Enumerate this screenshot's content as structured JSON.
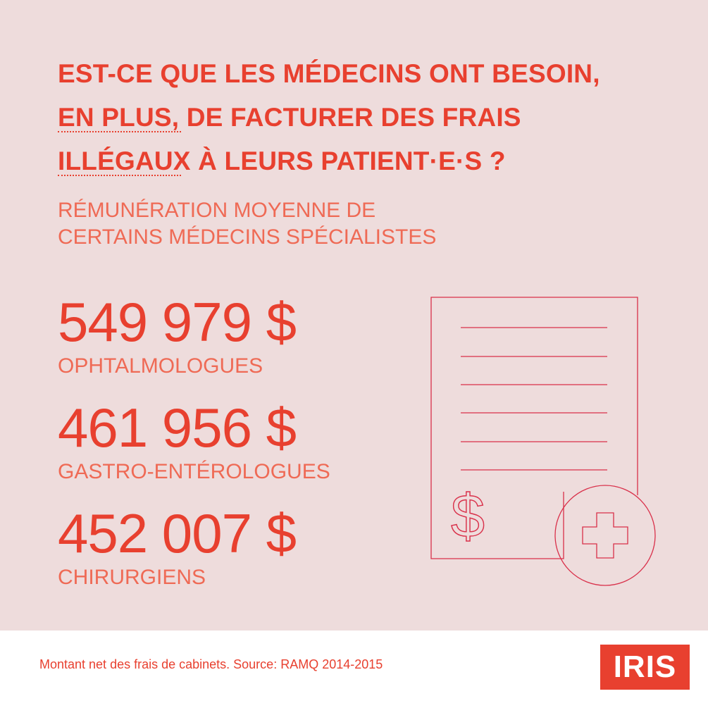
{
  "headline": {
    "line1": "EST-CE QUE LES MÉDECINS ONT BESOIN,",
    "line2": "EN PLUS, DE FACTURER DES FRAIS",
    "line3": "ILLÉGAUX À LEURS PATIENT·E·S ?"
  },
  "subtitle": {
    "line1": "RÉMUNÉRATION MOYENNE DE",
    "line2": "CERTAINS MÉDECINS SPÉCIALISTES"
  },
  "stats": [
    {
      "amount": "549 979 $",
      "label": "OPHTALMOLOGUES"
    },
    {
      "amount": "461 956 $",
      "label": "GASTRO-ENTÉROLOGUES"
    },
    {
      "amount": "452 007 $",
      "label": "CHIRURGIENS"
    }
  ],
  "illustration": {
    "icons": [
      "document-icon",
      "dollar-icon",
      "medical-cross-icon"
    ]
  },
  "footer": {
    "note": "Montant net des frais de cabinets. Source: RAMQ 2014-2015"
  },
  "logo": {
    "text": "IRIS"
  },
  "colors": {
    "accent": "#e8402f",
    "light_accent": "#ef6a55",
    "background": "#eedcdc",
    "icon_stroke": "#d9304a"
  }
}
